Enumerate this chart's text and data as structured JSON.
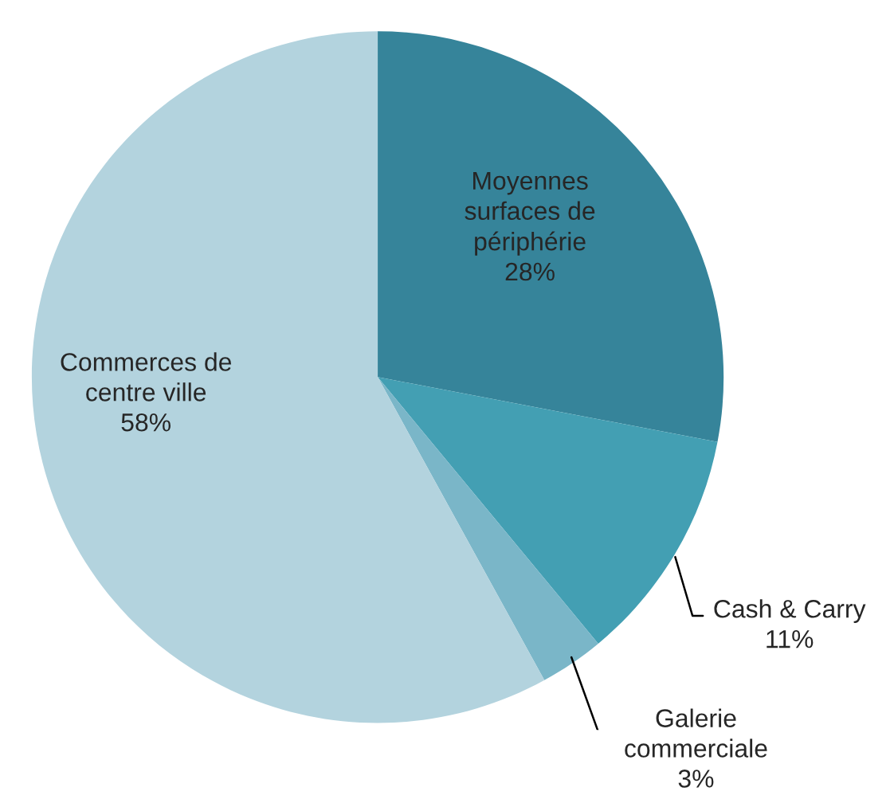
{
  "chart_data": {
    "type": "pie",
    "categories": [
      "Moyennes\nsurfaces de\npériphérie",
      "Cash & Carry",
      "Galerie\ncommerciale",
      "Commerces de\ncentre ville"
    ],
    "values": [
      28,
      11,
      3,
      58
    ],
    "value_labels": [
      "28%",
      "11%",
      "3%",
      "58%"
    ],
    "colors": [
      "#36849a",
      "#439fb3",
      "#7ab6c8",
      "#b3d3de"
    ],
    "legend": false
  }
}
